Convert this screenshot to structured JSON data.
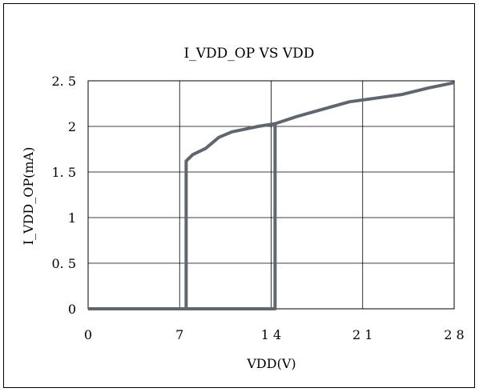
{
  "chart_data": {
    "type": "line",
    "title": "I_VDD_OP VS VDD",
    "xlabel": "VDD(V)",
    "ylabel": "I_VDD_OP(mA)",
    "xlim": [
      0,
      28
    ],
    "ylim": [
      0,
      2.5
    ],
    "x_ticks": [
      0,
      7,
      14,
      21,
      28
    ],
    "x_tick_labels": [
      "0",
      "7",
      "1 4",
      "2 1",
      "2 8"
    ],
    "y_ticks": [
      0,
      0.5,
      1,
      1.5,
      2,
      2.5
    ],
    "y_tick_labels": [
      "0",
      "0. 5",
      "1",
      "1. 5",
      "2",
      "2. 5"
    ],
    "grid": true,
    "legend": false,
    "series": [
      {
        "color": "#5f666d",
        "points": [
          [
            0,
            0
          ],
          [
            7.5,
            0
          ],
          [
            7.5,
            1.62
          ],
          [
            8,
            1.69
          ],
          [
            9,
            1.76
          ],
          [
            10,
            1.88
          ],
          [
            11,
            1.94
          ],
          [
            12,
            1.97
          ],
          [
            13,
            2.0
          ],
          [
            14.3,
            2.03
          ],
          [
            16,
            2.11
          ],
          [
            18,
            2.19
          ],
          [
            20,
            2.27
          ],
          [
            22,
            2.31
          ],
          [
            24,
            2.35
          ],
          [
            26,
            2.42
          ],
          [
            28,
            2.48
          ]
        ]
      },
      {
        "color": "#5f666d",
        "points": [
          [
            14.3,
            2.03
          ],
          [
            14.3,
            0
          ],
          [
            0,
            0
          ]
        ]
      }
    ]
  }
}
